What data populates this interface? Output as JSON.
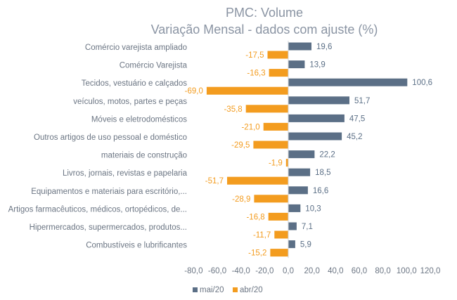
{
  "chart_data": {
    "type": "bar",
    "orientation": "horizontal",
    "title": "PMC: Volume",
    "subtitle": "Variação Mensal - dados com ajuste (%)",
    "categories": [
      "Comércio varejista ampliado",
      "Comércio Varejista",
      "Tecidos, vestuário e calçados",
      "veículos, motos, partes e peças",
      "Móveis e eletrodomésticos",
      "Outros artigos de uso pessoal e doméstico",
      "materiais de construção",
      "Livros, jornais, revistas e papelaria",
      "Equipamentos e materiais para escritório,...",
      "Artigos farmacêuticos, médicos, ortopédicos, de...",
      "Hipermercados, supermercados, produtos...",
      "Combustíveis e lubrificantes"
    ],
    "series": [
      {
        "name": "mai/20",
        "color": "#5b6f86",
        "values": [
          19.6,
          13.9,
          100.6,
          51.7,
          47.5,
          45.2,
          22.2,
          18.5,
          16.6,
          10.3,
          7.1,
          5.9
        ],
        "labels": [
          "19,6",
          "13,9",
          "100,6",
          "51,7",
          "47,5",
          "45,2",
          "22,2",
          "18,5",
          "16,6",
          "10,3",
          "7,1",
          "5,9"
        ]
      },
      {
        "name": "abr/20",
        "color": "#f39c1f",
        "values": [
          -17.5,
          -16.3,
          -69.0,
          -35.8,
          -21.0,
          -29.5,
          -1.9,
          -51.7,
          -28.9,
          -16.8,
          -11.7,
          -15.2
        ],
        "labels": [
          "-17,5",
          "-16,3",
          "-69,0",
          "-35,8",
          "-21,0",
          "-29,5",
          "-1,9",
          "-51,7",
          "-28,9",
          "-16,8",
          "-11,7",
          "-15,2"
        ]
      }
    ],
    "xlim": [
      -80,
      120
    ],
    "x_ticks": [
      -80,
      -60,
      -40,
      -20,
      0,
      20,
      40,
      60,
      80,
      100,
      120
    ],
    "x_tick_labels": [
      "-80,0",
      "-60,0",
      "-40,0",
      "-20,0",
      "0,0",
      "20,0",
      "40,0",
      "60,0",
      "80,0",
      "100,0",
      "120,0"
    ],
    "grid": false,
    "legend_position": "bottom"
  }
}
